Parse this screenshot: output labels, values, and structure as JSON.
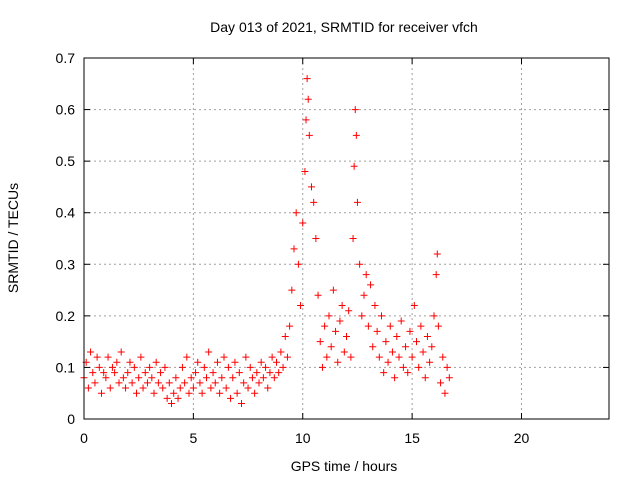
{
  "chart_data": {
    "type": "scatter",
    "title": "Day 013 of 2021, SRMTID for receiver vfch",
    "xlabel": "GPS time / hours",
    "ylabel": "SRMTID / TECUs",
    "xlim": [
      0,
      24
    ],
    "ylim": [
      0,
      0.7
    ],
    "xticks": [
      0,
      5,
      10,
      15,
      20
    ],
    "yticks": [
      0,
      0.1,
      0.2,
      0.3,
      0.4,
      0.5,
      0.6,
      0.7
    ],
    "grid": true,
    "marker": "+",
    "series_color": "#ff0000",
    "series": [
      {
        "name": "SRMTID",
        "points": [
          [
            0.0,
            0.08
          ],
          [
            0.1,
            0.11
          ],
          [
            0.2,
            0.06
          ],
          [
            0.3,
            0.13
          ],
          [
            0.4,
            0.09
          ],
          [
            0.5,
            0.07
          ],
          [
            0.6,
            0.12
          ],
          [
            0.7,
            0.1
          ],
          [
            0.8,
            0.05
          ],
          [
            0.9,
            0.09
          ],
          [
            1.0,
            0.08
          ],
          [
            1.1,
            0.12
          ],
          [
            1.2,
            0.06
          ],
          [
            1.3,
            0.1
          ],
          [
            1.4,
            0.09
          ],
          [
            1.5,
            0.11
          ],
          [
            1.6,
            0.07
          ],
          [
            1.7,
            0.13
          ],
          [
            1.8,
            0.08
          ],
          [
            1.9,
            0.06
          ],
          [
            2.0,
            0.09
          ],
          [
            2.1,
            0.11
          ],
          [
            2.2,
            0.07
          ],
          [
            2.3,
            0.1
          ],
          [
            2.4,
            0.05
          ],
          [
            2.5,
            0.08
          ],
          [
            2.6,
            0.12
          ],
          [
            2.7,
            0.06
          ],
          [
            2.8,
            0.09
          ],
          [
            2.9,
            0.07
          ],
          [
            3.0,
            0.1
          ],
          [
            3.1,
            0.08
          ],
          [
            3.2,
            0.05
          ],
          [
            3.3,
            0.11
          ],
          [
            3.4,
            0.07
          ],
          [
            3.5,
            0.09
          ],
          [
            3.6,
            0.06
          ],
          [
            3.7,
            0.1
          ],
          [
            3.8,
            0.04
          ],
          [
            3.9,
            0.07
          ],
          [
            4.0,
            0.03
          ],
          [
            4.1,
            0.05
          ],
          [
            4.2,
            0.08
          ],
          [
            4.3,
            0.04
          ],
          [
            4.4,
            0.06
          ],
          [
            4.5,
            0.1
          ],
          [
            4.6,
            0.07
          ],
          [
            4.7,
            0.12
          ],
          [
            4.8,
            0.05
          ],
          [
            4.9,
            0.08
          ],
          [
            5.0,
            0.06
          ],
          [
            5.1,
            0.09
          ],
          [
            5.2,
            0.11
          ],
          [
            5.3,
            0.07
          ],
          [
            5.4,
            0.05
          ],
          [
            5.5,
            0.1
          ],
          [
            5.6,
            0.08
          ],
          [
            5.7,
            0.13
          ],
          [
            5.8,
            0.06
          ],
          [
            5.9,
            0.09
          ],
          [
            6.0,
            0.07
          ],
          [
            6.1,
            0.11
          ],
          [
            6.2,
            0.05
          ],
          [
            6.3,
            0.08
          ],
          [
            6.4,
            0.12
          ],
          [
            6.5,
            0.06
          ],
          [
            6.6,
            0.1
          ],
          [
            6.7,
            0.04
          ],
          [
            6.8,
            0.08
          ],
          [
            6.9,
            0.11
          ],
          [
            7.0,
            0.05
          ],
          [
            7.1,
            0.09
          ],
          [
            7.2,
            0.03
          ],
          [
            7.3,
            0.07
          ],
          [
            7.4,
            0.12
          ],
          [
            7.5,
            0.06
          ],
          [
            7.6,
            0.1
          ],
          [
            7.7,
            0.08
          ],
          [
            7.8,
            0.05
          ],
          [
            7.9,
            0.09
          ],
          [
            8.0,
            0.07
          ],
          [
            8.1,
            0.11
          ],
          [
            8.2,
            0.08
          ],
          [
            8.3,
            0.1
          ],
          [
            8.4,
            0.06
          ],
          [
            8.5,
            0.09
          ],
          [
            8.6,
            0.12
          ],
          [
            8.7,
            0.08
          ],
          [
            8.8,
            0.11
          ],
          [
            8.9,
            0.09
          ],
          [
            9.0,
            0.13
          ],
          [
            9.1,
            0.1
          ],
          [
            9.2,
            0.16
          ],
          [
            9.3,
            0.12
          ],
          [
            9.4,
            0.18
          ],
          [
            9.5,
            0.25
          ],
          [
            9.6,
            0.33
          ],
          [
            9.7,
            0.4
          ],
          [
            9.8,
            0.3
          ],
          [
            9.9,
            0.22
          ],
          [
            10.0,
            0.38
          ],
          [
            10.1,
            0.48
          ],
          [
            10.15,
            0.58
          ],
          [
            10.2,
            0.66
          ],
          [
            10.25,
            0.62
          ],
          [
            10.3,
            0.55
          ],
          [
            10.4,
            0.45
          ],
          [
            10.5,
            0.42
          ],
          [
            10.6,
            0.35
          ],
          [
            10.7,
            0.24
          ],
          [
            10.8,
            0.15
          ],
          [
            10.9,
            0.1
          ],
          [
            11.0,
            0.18
          ],
          [
            11.1,
            0.12
          ],
          [
            11.2,
            0.2
          ],
          [
            11.3,
            0.14
          ],
          [
            11.4,
            0.25
          ],
          [
            11.5,
            0.17
          ],
          [
            11.6,
            0.11
          ],
          [
            11.7,
            0.19
          ],
          [
            11.8,
            0.22
          ],
          [
            11.9,
            0.13
          ],
          [
            12.0,
            0.16
          ],
          [
            12.1,
            0.21
          ],
          [
            12.2,
            0.12
          ],
          [
            12.3,
            0.35
          ],
          [
            12.35,
            0.49
          ],
          [
            12.4,
            0.6
          ],
          [
            12.45,
            0.55
          ],
          [
            12.5,
            0.42
          ],
          [
            12.6,
            0.3
          ],
          [
            12.7,
            0.2
          ],
          [
            12.8,
            0.24
          ],
          [
            12.9,
            0.28
          ],
          [
            13.0,
            0.18
          ],
          [
            13.1,
            0.26
          ],
          [
            13.2,
            0.14
          ],
          [
            13.3,
            0.22
          ],
          [
            13.4,
            0.17
          ],
          [
            13.5,
            0.12
          ],
          [
            13.6,
            0.2
          ],
          [
            13.7,
            0.09
          ],
          [
            13.8,
            0.15
          ],
          [
            13.9,
            0.11
          ],
          [
            14.0,
            0.18
          ],
          [
            14.1,
            0.13
          ],
          [
            14.2,
            0.08
          ],
          [
            14.3,
            0.16
          ],
          [
            14.4,
            0.12
          ],
          [
            14.5,
            0.19
          ],
          [
            14.6,
            0.1
          ],
          [
            14.7,
            0.14
          ],
          [
            14.8,
            0.09
          ],
          [
            14.9,
            0.17
          ],
          [
            15.0,
            0.12
          ],
          [
            15.1,
            0.22
          ],
          [
            15.2,
            0.15
          ],
          [
            15.3,
            0.1
          ],
          [
            15.4,
            0.18
          ],
          [
            15.5,
            0.13
          ],
          [
            15.6,
            0.08
          ],
          [
            15.7,
            0.16
          ],
          [
            15.8,
            0.11
          ],
          [
            15.9,
            0.14
          ],
          [
            16.0,
            0.2
          ],
          [
            16.1,
            0.28
          ],
          [
            16.15,
            0.32
          ],
          [
            16.2,
            0.18
          ],
          [
            16.3,
            0.07
          ],
          [
            16.4,
            0.12
          ],
          [
            16.5,
            0.05
          ],
          [
            16.6,
            0.1
          ],
          [
            16.7,
            0.08
          ]
        ]
      }
    ]
  }
}
